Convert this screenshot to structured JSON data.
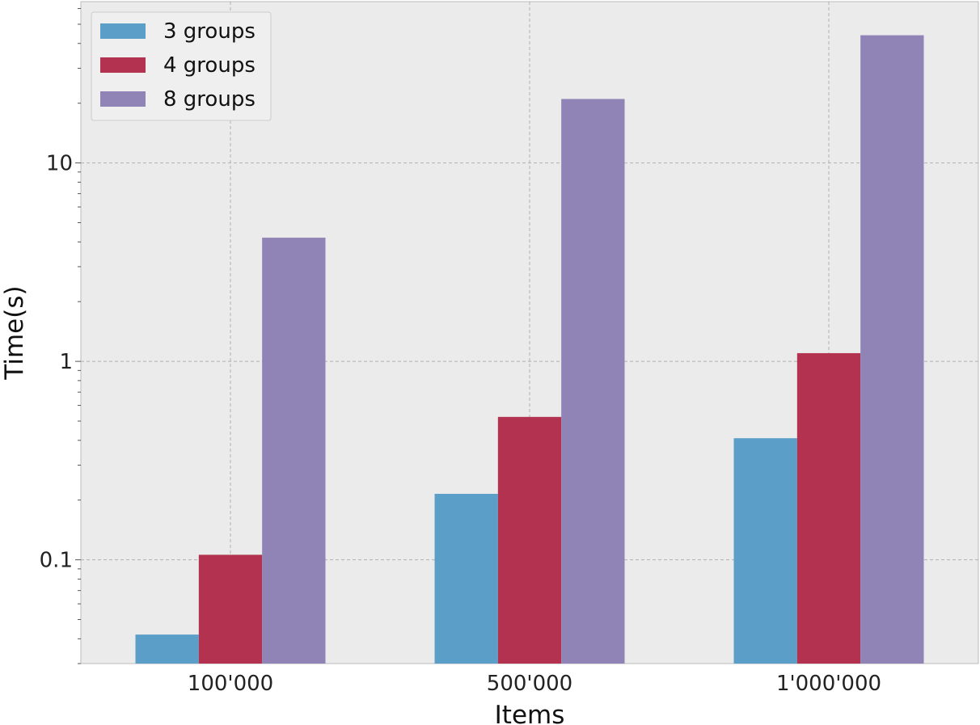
{
  "chart_data": {
    "type": "bar",
    "categories": [
      "100'000",
      "500'000",
      "1'000'000"
    ],
    "series": [
      {
        "name": "3 groups",
        "color": "#5B9FC9",
        "values": [
          0.042,
          0.215,
          0.41
        ]
      },
      {
        "name": "4 groups",
        "color": "#B2324F",
        "values": [
          0.106,
          0.525,
          1.1
        ]
      },
      {
        "name": "8 groups",
        "color": "#9083B5",
        "values": [
          4.2,
          21.0,
          44.0
        ]
      }
    ],
    "title": "",
    "xlabel": "Items",
    "ylabel": "Time(s)",
    "yscale": "log",
    "ylim": [
      0.03,
      65
    ],
    "yticks": [
      0.1,
      1,
      10
    ],
    "ytick_labels": [
      "0.1",
      "1",
      "10"
    ],
    "grid": true,
    "legend_position": "top-left",
    "colors": {
      "plot_background": "#EBEBEB",
      "grid": "#B0B0B0",
      "spine": "#BBBBBB"
    }
  }
}
